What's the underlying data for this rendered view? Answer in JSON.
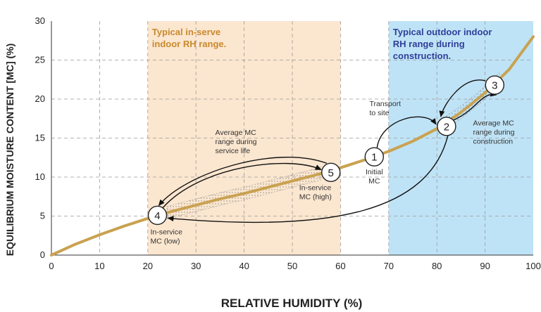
{
  "chart_data": {
    "type": "line",
    "xlabel": "RELATIVE HUMIDITY (%)",
    "ylabel": "EQUILIBRIUM MOISTURE CONTENT [MC] (%)",
    "xlim": [
      0,
      100
    ],
    "ylim": [
      0,
      30
    ],
    "x_ticks": [
      "0",
      "10",
      "20",
      "30",
      "40",
      "50",
      "60",
      "70",
      "80",
      "90",
      "100"
    ],
    "y_ticks": [
      "0",
      "5",
      "10",
      "15",
      "20",
      "25",
      "30"
    ],
    "grid": true,
    "colors": {
      "curve": "#c9a251",
      "indoor_band": "#fbe6cf",
      "outdoor_band": "#bfe3f6",
      "indoor_text": "#c88a2e",
      "outdoor_text": "#2e3f9a"
    },
    "series": [
      {
        "x": [
          0,
          5,
          10,
          15,
          20,
          25,
          30,
          35,
          40,
          45,
          50,
          55,
          60,
          65,
          70,
          75,
          80,
          85,
          90,
          95,
          100
        ],
        "y": [
          0,
          1.4,
          2.6,
          3.7,
          4.7,
          5.6,
          6.4,
          7.2,
          7.9,
          8.7,
          9.5,
          10.3,
          11.2,
          12.2,
          13.3,
          14.6,
          16.2,
          18.3,
          20.8,
          23.8,
          28
        ]
      }
    ],
    "bands": [
      {
        "x_from": 20,
        "x_to": 60,
        "label": [
          "Typical in-serve",
          "indoor RH range."
        ]
      },
      {
        "x_from": 70,
        "x_to": 100,
        "label": [
          "Typical outdoor indoor",
          "RH range during",
          "construction."
        ]
      }
    ],
    "points": [
      {
        "id": "1",
        "x": 67,
        "y": 12.6,
        "label": [
          "Initial",
          "MC"
        ]
      },
      {
        "id": "2",
        "x": 82,
        "y": 16.5,
        "label": []
      },
      {
        "id": "3",
        "x": 92,
        "y": 21.8,
        "label": []
      },
      {
        "id": "4",
        "x": 22,
        "y": 5.1,
        "label": [
          "In-service",
          "MC (low)"
        ]
      },
      {
        "id": "5",
        "x": 58,
        "y": 10.6,
        "label": [
          "In-service",
          "MC (high)"
        ]
      }
    ],
    "annotations": {
      "transport": [
        "Transport",
        "to site"
      ],
      "construction_range": [
        "Average MC",
        "range during",
        "construction"
      ],
      "service_range": [
        "Average MC",
        "range during",
        "service life"
      ]
    }
  }
}
